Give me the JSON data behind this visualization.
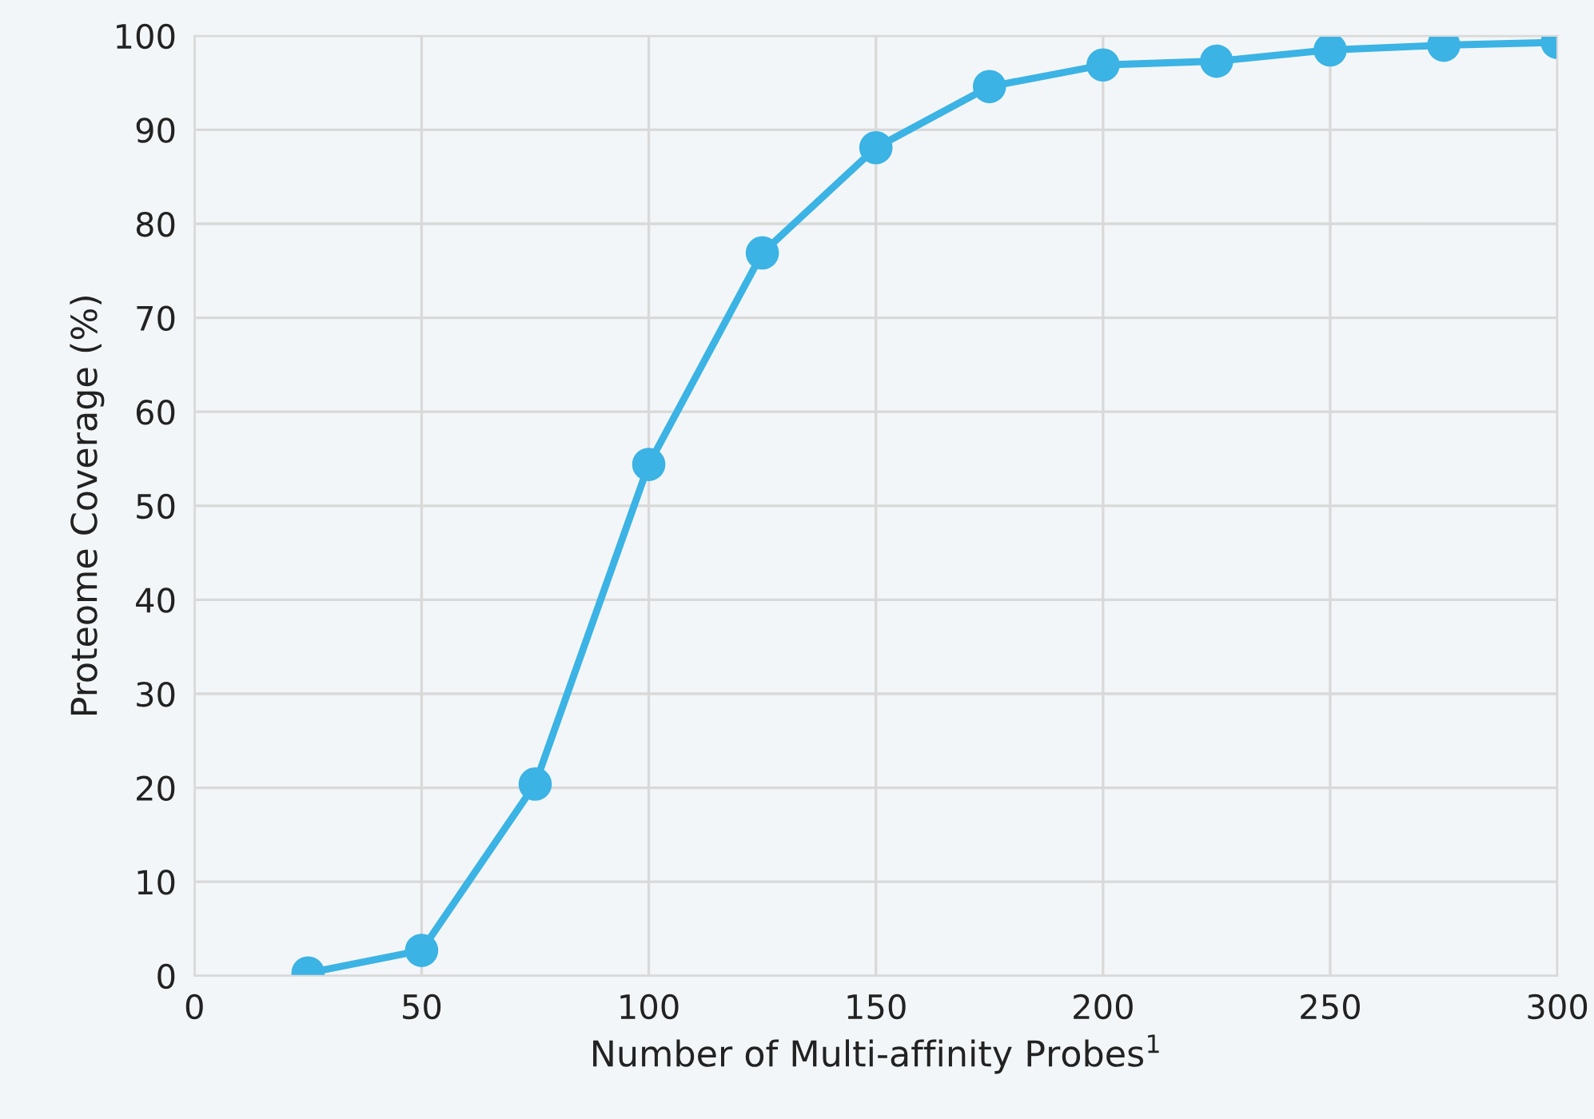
{
  "chart_data": {
    "type": "line",
    "xlabel": "Number of Multi-affinity Probes$^{1}$",
    "ylabel": "Proteome Coverage (%)",
    "x": [
      25,
      50,
      75,
      100,
      125,
      150,
      175,
      200,
      225,
      250,
      275,
      300
    ],
    "series": [
      {
        "color": "#3bb3e4",
        "values": [
          0.3,
          2.7,
          20.4,
          54.4,
          76.9,
          88.1,
          94.6,
          96.9,
          97.3,
          98.5,
          99.0,
          99.3
        ]
      }
    ],
    "xlim": [
      0,
      300
    ],
    "xticks": [
      0,
      50,
      100,
      150,
      200,
      250,
      300
    ],
    "ylim": [
      0,
      100
    ],
    "yticks": [
      0,
      10,
      20,
      30,
      40,
      50,
      60,
      70,
      80,
      90,
      100
    ],
    "grid": true,
    "marker": "circle",
    "line_style": "solid"
  }
}
